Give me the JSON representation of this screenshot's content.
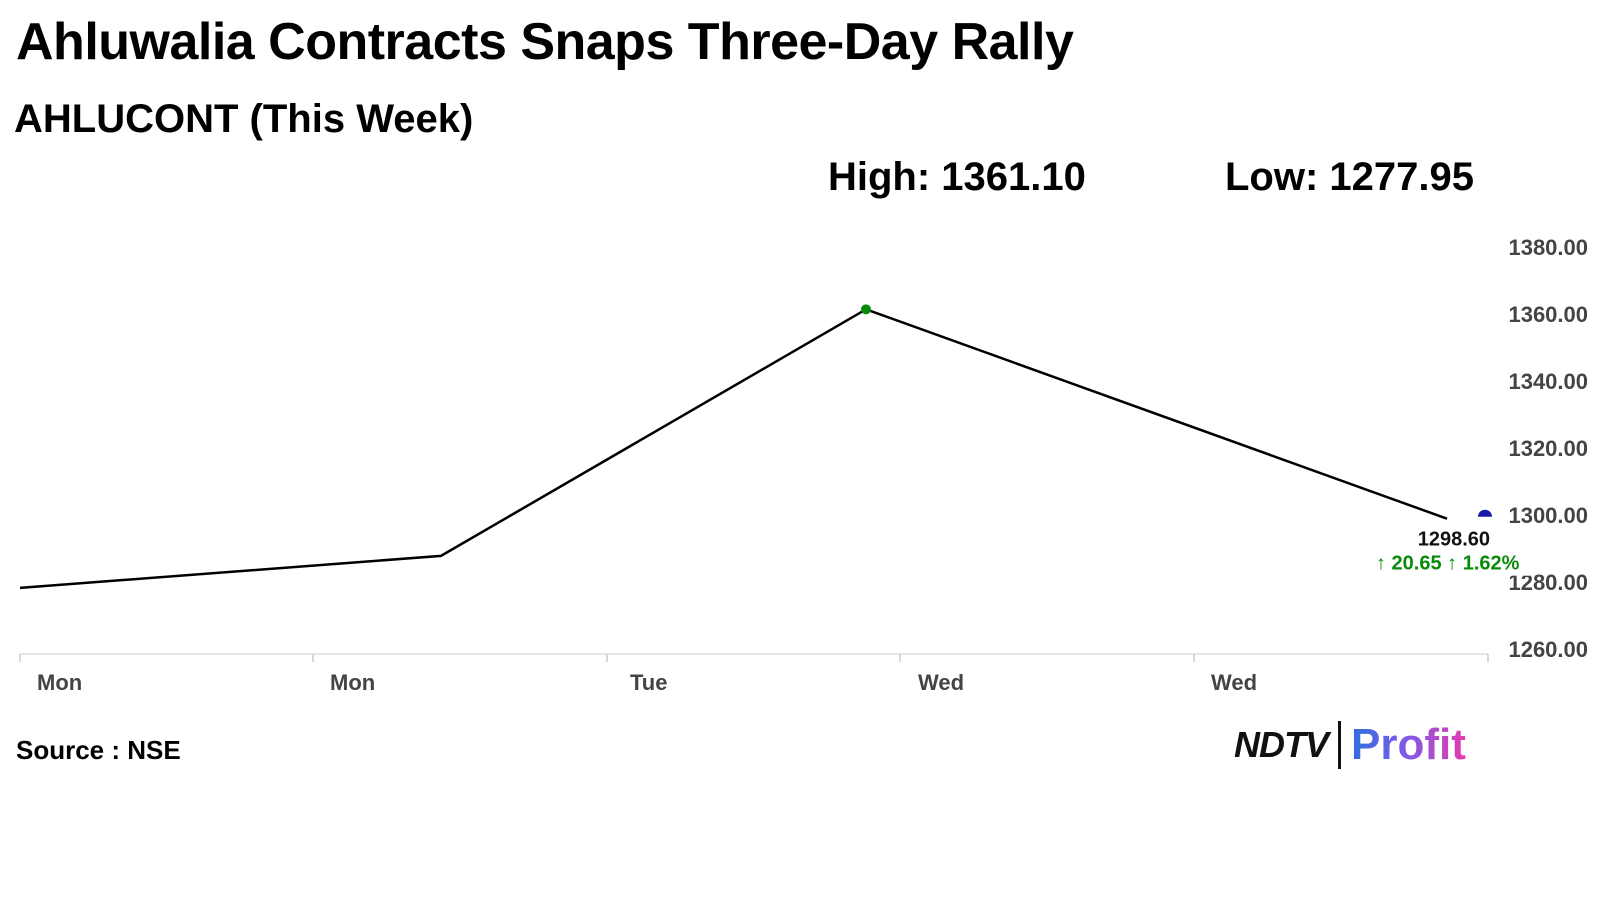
{
  "header": {
    "title": "Ahluwalia Contracts Snaps Three-Day Rally",
    "subtitle": "AHLUCONT (This Week)",
    "high_text": "High: 1361.10",
    "low_text": "Low: 1277.95"
  },
  "footer": {
    "source": "Source : NSE",
    "logo_left": "NDTV",
    "logo_right": "Profit"
  },
  "chart_data": {
    "type": "line",
    "x": [
      0,
      1,
      2,
      3
    ],
    "x_ticks": [
      "Mon",
      "Mon",
      "Tue",
      "Wed",
      "Wed"
    ],
    "series": [
      {
        "values": [
          1277.95,
          1287.5,
          1361.1,
          1298.6
        ],
        "color": "#000000"
      }
    ],
    "y_ticks": [
      "1380.00",
      "1360.00",
      "1340.00",
      "1320.00",
      "1300.00",
      "1280.00",
      "1260.00"
    ],
    "ylim": [
      1260,
      1380
    ],
    "grid": false,
    "high_marker_color": "#0a8a0a",
    "last_marker_color": "#1a1aaa",
    "last_label": "1298.60",
    "change_label": "↑ 20.65 ↑ 1.62%",
    "change_color": "#0a8a0a"
  }
}
